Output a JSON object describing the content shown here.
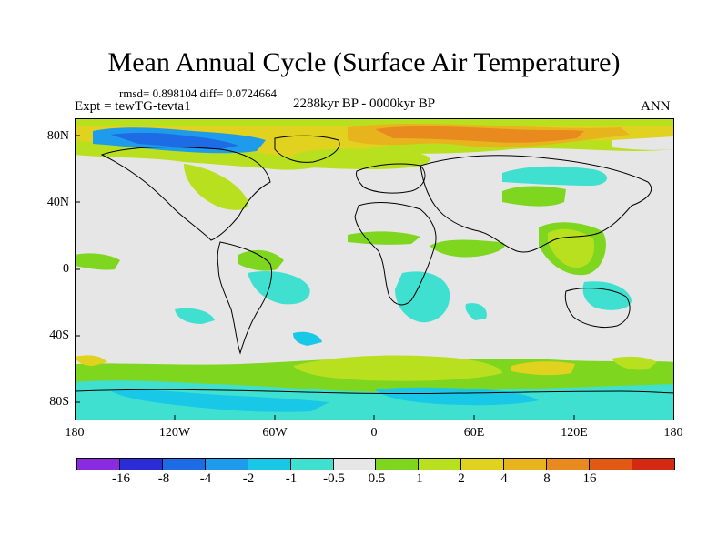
{
  "title": "Mean Annual Cycle (Surface Air Temperature)",
  "stats": "rmsd= 0.898104 diff= 0.0724664",
  "experiment": "Expt = tewTG-tevta1",
  "period": "2288kyr BP - 0000kyr BP",
  "season": "ANN",
  "lat_labels": [
    "80N",
    "40N",
    "0",
    "40S",
    "80S"
  ],
  "lon_labels": [
    "180",
    "120W",
    "60W",
    "0",
    "60E",
    "120E",
    "180"
  ],
  "colorbar": {
    "colors": [
      "#8a2be2",
      "#2b2bd8",
      "#1e6be6",
      "#1e9bea",
      "#19c8e6",
      "#3fe0d0",
      "#e6e6e6",
      "#7ed61e",
      "#b8e01e",
      "#e0d21e",
      "#e8b41e",
      "#e88a1e",
      "#e05a14",
      "#d42a14"
    ],
    "labels": [
      "-16",
      "-8",
      "-4",
      "-2",
      "-1",
      "-0.5",
      "0.5",
      "1",
      "2",
      "4",
      "8",
      "16"
    ]
  }
}
